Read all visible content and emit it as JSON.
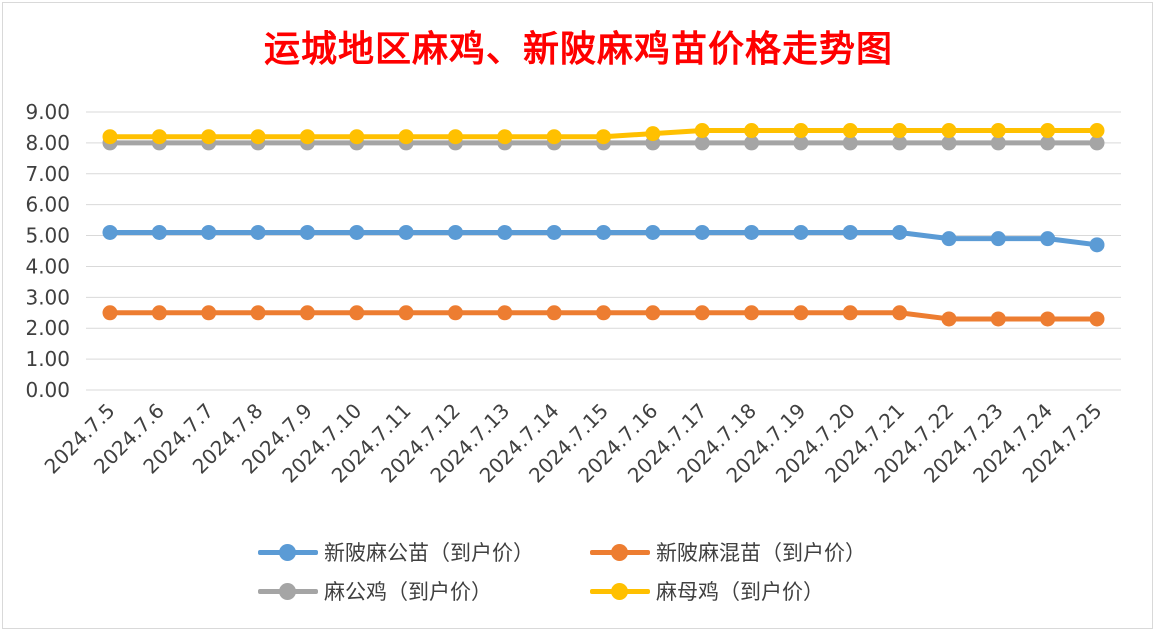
{
  "chart_data": {
    "type": "line",
    "title": "运城地区麻鸡、新陂麻鸡苗价格走势图",
    "categories": [
      "2024.7.5",
      "2024.7.6",
      "2024.7.7",
      "2024.7.8",
      "2024.7.9",
      "2024.7.10",
      "2024.7.11",
      "2024.7.12",
      "2024.7.13",
      "2024.7.14",
      "2024.7.15",
      "2024.7.16",
      "2024.7.17",
      "2024.7.18",
      "2024.7.19",
      "2024.7.20",
      "2024.7.21",
      "2024.7.22",
      "2024.7.23",
      "2024.7.24",
      "2024.7.25"
    ],
    "ylim": [
      0,
      9
    ],
    "yticks": [
      "0.00",
      "1.00",
      "2.00",
      "3.00",
      "4.00",
      "5.00",
      "6.00",
      "7.00",
      "8.00",
      "9.00"
    ],
    "grid": true,
    "legend_position": "bottom",
    "series": [
      {
        "name": "新陂麻公苗（到户价）",
        "color": "#5b9bd5",
        "values": [
          5.1,
          5.1,
          5.1,
          5.1,
          5.1,
          5.1,
          5.1,
          5.1,
          5.1,
          5.1,
          5.1,
          5.1,
          5.1,
          5.1,
          5.1,
          5.1,
          5.1,
          4.9,
          4.9,
          4.9,
          4.7
        ]
      },
      {
        "name": "新陂麻混苗（到户价）",
        "color": "#ed7d31",
        "values": [
          2.5,
          2.5,
          2.5,
          2.5,
          2.5,
          2.5,
          2.5,
          2.5,
          2.5,
          2.5,
          2.5,
          2.5,
          2.5,
          2.5,
          2.5,
          2.5,
          2.5,
          2.3,
          2.3,
          2.3,
          2.3
        ]
      },
      {
        "name": "麻公鸡（到户价）",
        "color": "#a5a5a5",
        "values": [
          8.0,
          8.0,
          8.0,
          8.0,
          8.0,
          8.0,
          8.0,
          8.0,
          8.0,
          8.0,
          8.0,
          8.0,
          8.0,
          8.0,
          8.0,
          8.0,
          8.0,
          8.0,
          8.0,
          8.0,
          8.0
        ]
      },
      {
        "name": "麻母鸡（到户价）",
        "color": "#ffc000",
        "values": [
          8.2,
          8.2,
          8.2,
          8.2,
          8.2,
          8.2,
          8.2,
          8.2,
          8.2,
          8.2,
          8.2,
          8.3,
          8.4,
          8.4,
          8.4,
          8.4,
          8.4,
          8.4,
          8.4,
          8.4,
          8.4
        ]
      }
    ]
  }
}
